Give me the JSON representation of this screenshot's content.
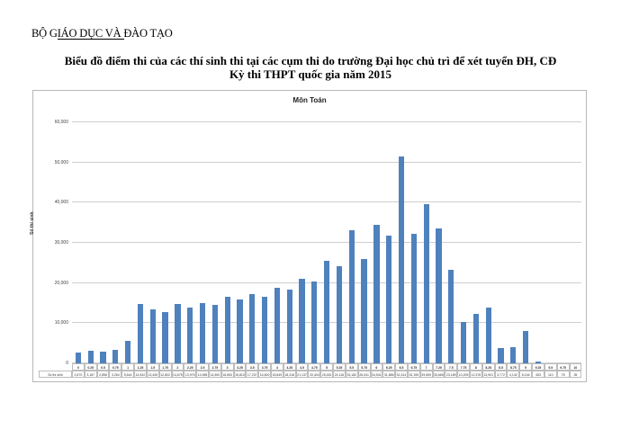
{
  "header": {
    "ministry": "BỘ GIÁO DỤC VÀ ĐÀO TẠO",
    "title_line1": "Biểu đồ điểm thi của các thí sinh thi tại các cụm thi do trường Đại học chủ trì để xét tuyển ĐH, CĐ",
    "title_line2": "Kỳ thi THPT quốc gia năm 2015"
  },
  "chart_data": {
    "type": "bar",
    "title": "Môn Toán",
    "xlabel": "",
    "ylabel": "Số thí sinh",
    "table_row_label": "Số thí sinh",
    "ylim": [
      0,
      60000
    ],
    "yticks": [
      "0",
      "10,000",
      "20,000",
      "30,000",
      "40,000",
      "50,000",
      "60,000"
    ],
    "grid": true,
    "legend": "none",
    "bar_color": "#4f81bd",
    "categories": [
      "0",
      "0.25",
      "0.5",
      "0.75",
      "1",
      "1.25",
      "1.5",
      "1.75",
      "2",
      "2.25",
      "2.5",
      "2.75",
      "3",
      "3.25",
      "3.5",
      "3.75",
      "4",
      "4.25",
      "4.5",
      "4.75",
      "5",
      "5.25",
      "5.5",
      "5.75",
      "6",
      "6.25",
      "6.5",
      "6.75",
      "7",
      "7.25",
      "7.5",
      "7.75",
      "8",
      "8.25",
      "8.5",
      "8.75",
      "9",
      "9.25",
      "9.5",
      "9.75",
      "10"
    ],
    "values": [
      2670,
      3187,
      2856,
      3264,
      5644,
      14810,
      13405,
      12802,
      14675,
      13975,
      14985,
      14500,
      16653,
      15810,
      17237,
      16600,
      18849,
      18318,
      21137,
      20404,
      25451,
      24116,
      33182,
      26041,
      34541,
      31886,
      51514,
      32155,
      39659,
      33665,
      23189,
      10205,
      12376,
      13901,
      3772,
      4142,
      8146,
      453,
      110,
      78,
      35
    ]
  }
}
